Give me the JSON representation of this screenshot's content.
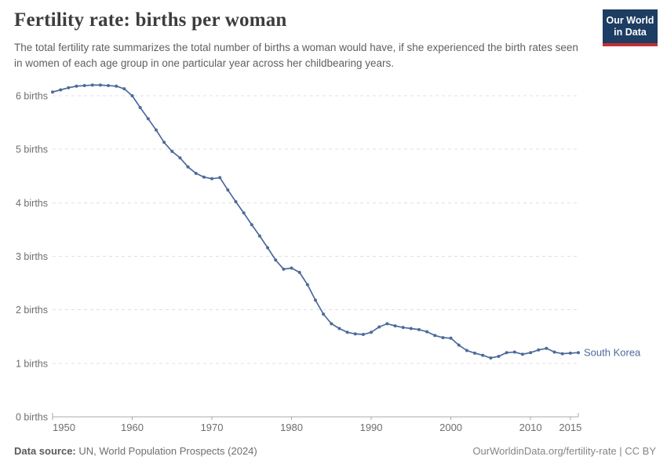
{
  "logo": {
    "line1": "Our World",
    "line2": "in Data",
    "navy": "#1d3d63",
    "red": "#c22f35"
  },
  "footer": {
    "datasource_label": "Data source:",
    "datasource_value": " UN, World Population Prospects (2024)",
    "link_text": "OurWorldinData.org/fertility-rate | CC BY"
  },
  "chart_data": {
    "type": "line",
    "title": "Fertility rate: births per woman",
    "subtitle": "The total fertility rate summarizes the total number of births a woman would have, if she experienced the birth rates seen in women of each age group in one particular year across her childbearing years.",
    "xlabel": "",
    "ylabel": "births",
    "xlim": [
      1950,
      2016
    ],
    "ylim": [
      0,
      6.2
    ],
    "grid": "horizontal-dashed",
    "legend_position": "end-of-line-label",
    "line_color": "#4c6a9c",
    "x_ticks": [
      1950,
      1960,
      1970,
      1980,
      1990,
      2000,
      2010,
      2015
    ],
    "y_ticks": [
      {
        "value": 0,
        "label": "0 births"
      },
      {
        "value": 1,
        "label": "1 births"
      },
      {
        "value": 2,
        "label": "2 births"
      },
      {
        "value": 3,
        "label": "3 births"
      },
      {
        "value": 4,
        "label": "4 births"
      },
      {
        "value": 5,
        "label": "5 births"
      },
      {
        "value": 6,
        "label": "6 births"
      }
    ],
    "x": [
      1950,
      1951,
      1952,
      1953,
      1954,
      1955,
      1956,
      1957,
      1958,
      1959,
      1960,
      1961,
      1962,
      1963,
      1964,
      1965,
      1966,
      1967,
      1968,
      1969,
      1970,
      1971,
      1972,
      1973,
      1974,
      1975,
      1976,
      1977,
      1978,
      1979,
      1980,
      1981,
      1982,
      1983,
      1984,
      1985,
      1986,
      1987,
      1988,
      1989,
      1990,
      1991,
      1992,
      1993,
      1994,
      1995,
      1996,
      1997,
      1998,
      1999,
      2000,
      2001,
      2002,
      2003,
      2004,
      2005,
      2006,
      2007,
      2008,
      2009,
      2010,
      2011,
      2012,
      2013,
      2014,
      2015,
      2016
    ],
    "series": [
      {
        "name": "South Korea",
        "values": [
          6.07,
          6.11,
          6.15,
          6.18,
          6.19,
          6.2,
          6.2,
          6.19,
          6.18,
          6.13,
          6.0,
          5.78,
          5.57,
          5.36,
          5.13,
          4.96,
          4.84,
          4.67,
          4.55,
          4.48,
          4.45,
          4.47,
          4.24,
          4.02,
          3.81,
          3.59,
          3.38,
          3.16,
          2.93,
          2.76,
          2.78,
          2.7,
          2.47,
          2.18,
          1.92,
          1.74,
          1.65,
          1.58,
          1.55,
          1.54,
          1.58,
          1.68,
          1.74,
          1.7,
          1.67,
          1.65,
          1.63,
          1.59,
          1.52,
          1.48,
          1.47,
          1.34,
          1.24,
          1.19,
          1.15,
          1.1,
          1.13,
          1.2,
          1.21,
          1.17,
          1.2,
          1.25,
          1.28,
          1.21,
          1.18,
          1.19,
          1.2
        ]
      }
    ]
  }
}
